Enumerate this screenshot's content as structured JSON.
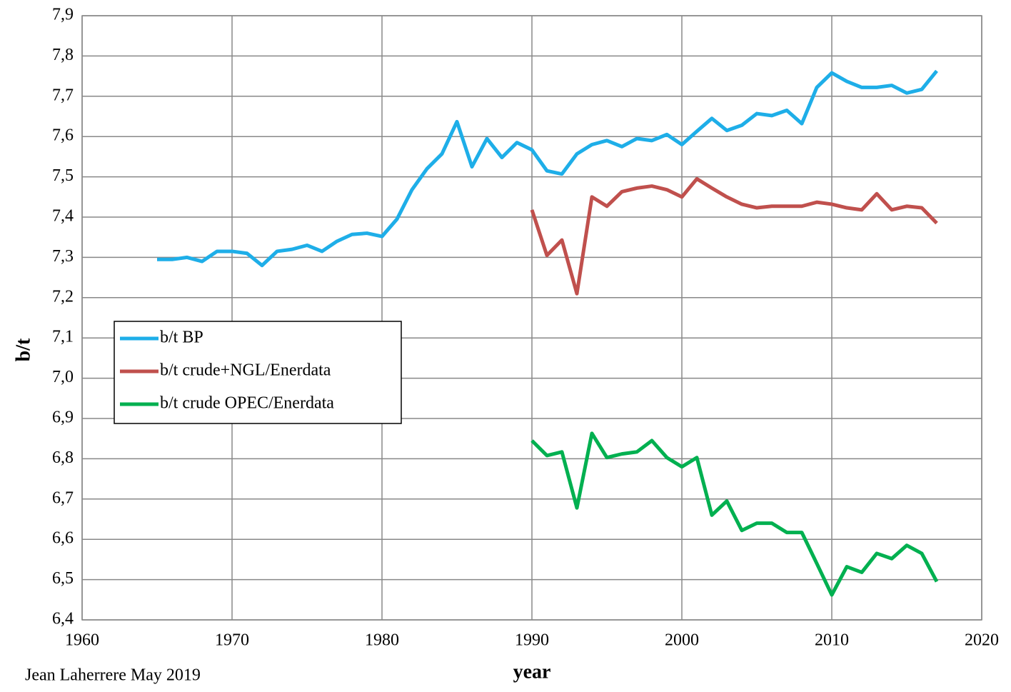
{
  "chart_data": {
    "type": "line",
    "x_label": "year",
    "y_label": "b/t",
    "annotation": "Jean Laherrere May 2019",
    "x": [
      1965,
      1966,
      1967,
      1968,
      1969,
      1970,
      1971,
      1972,
      1973,
      1974,
      1975,
      1976,
      1977,
      1978,
      1979,
      1980,
      1981,
      1982,
      1983,
      1984,
      1985,
      1986,
      1987,
      1988,
      1989,
      1990,
      1991,
      1992,
      1993,
      1994,
      1995,
      1996,
      1997,
      1998,
      1999,
      2000,
      2001,
      2002,
      2003,
      2004,
      2005,
      2006,
      2007,
      2008,
      2009,
      2010,
      2011,
      2012,
      2013,
      2014,
      2015,
      2016,
      2017
    ],
    "series": [
      {
        "name": "b/t BP",
        "color": "#1eaee8",
        "values": [
          7.295,
          7.295,
          7.3,
          7.29,
          7.315,
          7.315,
          7.31,
          7.28,
          7.315,
          7.32,
          7.33,
          7.315,
          7.34,
          7.357,
          7.36,
          7.352,
          7.395,
          7.468,
          7.52,
          7.557,
          7.637,
          7.525,
          7.595,
          7.548,
          7.585,
          7.567,
          7.515,
          7.507,
          7.557,
          7.58,
          7.59,
          7.575,
          7.595,
          7.59,
          7.605,
          7.58,
          7.613,
          7.645,
          7.615,
          7.628,
          7.657,
          7.652,
          7.665,
          7.632,
          7.722,
          7.758,
          7.737,
          7.722,
          7.722,
          7.727,
          7.708,
          7.717,
          7.763
        ]
      },
      {
        "name": "b/t crude+NGL/Enerdata",
        "color": "#c0504d",
        "values": [
          null,
          null,
          null,
          null,
          null,
          null,
          null,
          null,
          null,
          null,
          null,
          null,
          null,
          null,
          null,
          null,
          null,
          null,
          null,
          null,
          null,
          null,
          null,
          null,
          null,
          7.418,
          7.305,
          7.343,
          7.21,
          7.45,
          7.427,
          7.463,
          7.472,
          7.477,
          7.468,
          7.45,
          7.495,
          7.472,
          7.45,
          7.432,
          7.423,
          7.427,
          7.427,
          7.427,
          7.437,
          7.432,
          7.423,
          7.418,
          7.458,
          7.418,
          7.427,
          7.423,
          7.385
        ]
      },
      {
        "name": "b/t crude OPEC/Enerdata",
        "color": "#00b050",
        "values": [
          null,
          null,
          null,
          null,
          null,
          null,
          null,
          null,
          null,
          null,
          null,
          null,
          null,
          null,
          null,
          null,
          null,
          null,
          null,
          null,
          null,
          null,
          null,
          null,
          null,
          6.845,
          6.808,
          6.817,
          6.678,
          6.863,
          6.803,
          6.812,
          6.817,
          6.845,
          6.803,
          6.78,
          6.803,
          6.66,
          6.695,
          6.622,
          6.64,
          6.64,
          6.617,
          6.617,
          6.54,
          6.462,
          6.532,
          6.518,
          6.565,
          6.552,
          6.585,
          6.565,
          6.495
        ]
      }
    ],
    "xlim": [
      1960,
      2020
    ],
    "xticks": [
      1960,
      1970,
      1980,
      1990,
      2000,
      2010,
      2020
    ],
    "ylim": [
      6.4,
      7.9
    ],
    "yticks": [
      {
        "value": 6.4,
        "label": "6,4"
      },
      {
        "value": 6.5,
        "label": "6,5"
      },
      {
        "value": 6.6,
        "label": "6,6"
      },
      {
        "value": 6.7,
        "label": "6,7"
      },
      {
        "value": 6.8,
        "label": "6,8"
      },
      {
        "value": 6.9,
        "label": "6,9"
      },
      {
        "value": 7.0,
        "label": "7,0"
      },
      {
        "value": 7.1,
        "label": "7,1"
      },
      {
        "value": 7.2,
        "label": "7,2"
      },
      {
        "value": 7.3,
        "label": "7,3"
      },
      {
        "value": 7.4,
        "label": "7,4"
      },
      {
        "value": 7.5,
        "label": "7,5"
      },
      {
        "value": 7.6,
        "label": "7,6"
      },
      {
        "value": 7.7,
        "label": "7,7"
      },
      {
        "value": 7.8,
        "label": "7,8"
      },
      {
        "value": 7.9,
        "label": "7,9"
      }
    ],
    "grid": true,
    "legend": "left"
  }
}
